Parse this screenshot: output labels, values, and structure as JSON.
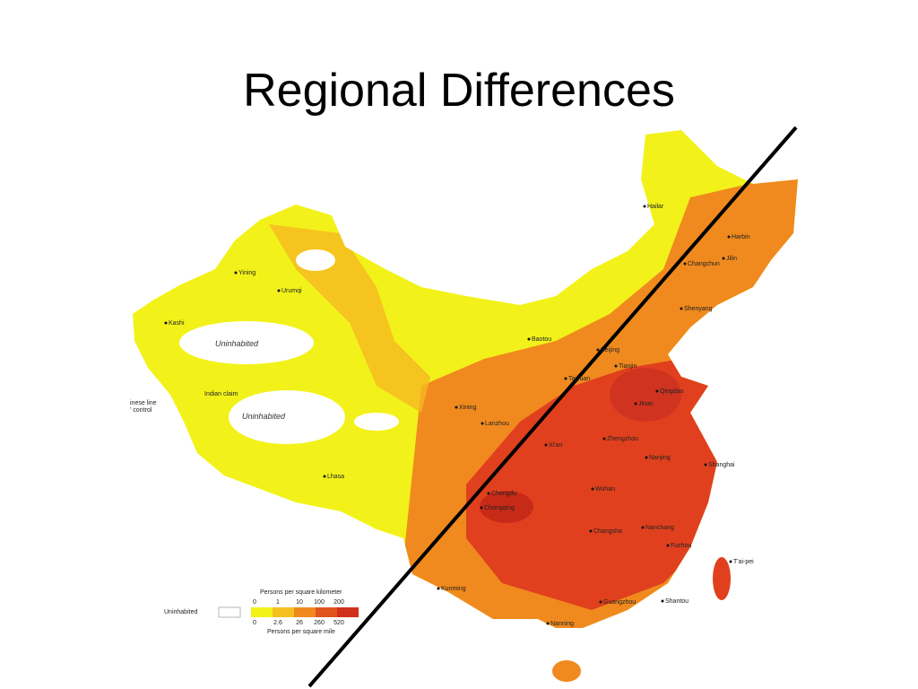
{
  "title": "Regional Differences",
  "map": {
    "city_labels": [
      "Hailar",
      "Harbin",
      "Jilin",
      "Changchun",
      "Shenyang",
      "Yining",
      "Urumqi",
      "Kashi",
      "Baotou",
      "Beijing",
      "Tianjin",
      "Taiyuan",
      "Jinan",
      "Qingdao",
      "Xining",
      "Lanzhou",
      "Xi'an",
      "Zhengzhou",
      "Nanjing",
      "Shanghai",
      "Chengdu",
      "Chongqing",
      "Wuhan",
      "Changsha",
      "Nanchang",
      "Fuzhou",
      "T'ai-pei",
      "Kunming",
      "Guangzhou",
      "Shantou",
      "Nanning",
      "Lhasa"
    ],
    "region_labels": [
      "Uninhabited",
      "Uninhabited",
      "Indian claim",
      "inese line",
      "' control"
    ]
  },
  "legend": {
    "km_title": "Persons per square kilometer",
    "km_values": [
      0,
      1,
      10,
      100,
      200
    ],
    "uninhabited": "Uninhabited",
    "mile_values": [
      0,
      2.6,
      26,
      260,
      520
    ],
    "mile_title": "Persons per square mile"
  }
}
